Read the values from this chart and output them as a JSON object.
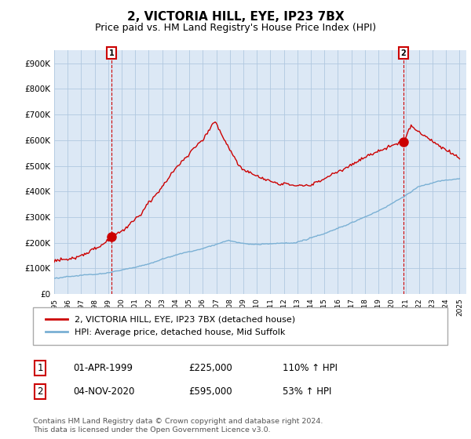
{
  "title": "2, VICTORIA HILL, EYE, IP23 7BX",
  "subtitle": "Price paid vs. HM Land Registry's House Price Index (HPI)",
  "title_fontsize": 11,
  "subtitle_fontsize": 9,
  "ylim": [
    0,
    950000
  ],
  "yticks": [
    0,
    100000,
    200000,
    300000,
    400000,
    500000,
    600000,
    700000,
    800000,
    900000
  ],
  "ytick_labels": [
    "£0",
    "£100K",
    "£200K",
    "£300K",
    "£400K",
    "£500K",
    "£600K",
    "£700K",
    "£800K",
    "£900K"
  ],
  "sale1_date_num": 1999.25,
  "sale1_price": 225000,
  "sale2_date_num": 2020.84,
  "sale2_price": 595000,
  "line_color_red": "#cc0000",
  "line_color_blue": "#7ab0d4",
  "chart_bg": "#dce8f5",
  "annotation_box_color": "#cc0000",
  "legend_label_red": "2, VICTORIA HILL, EYE, IP23 7BX (detached house)",
  "legend_label_blue": "HPI: Average price, detached house, Mid Suffolk",
  "table_row1": [
    "1",
    "01-APR-1999",
    "£225,000",
    "110% ↑ HPI"
  ],
  "table_row2": [
    "2",
    "04-NOV-2020",
    "£595,000",
    "53% ↑ HPI"
  ],
  "footnote": "Contains HM Land Registry data © Crown copyright and database right 2024.\nThis data is licensed under the Open Government Licence v3.0.",
  "grid_color": "#b0c8e0",
  "bg_color": "#ffffff"
}
